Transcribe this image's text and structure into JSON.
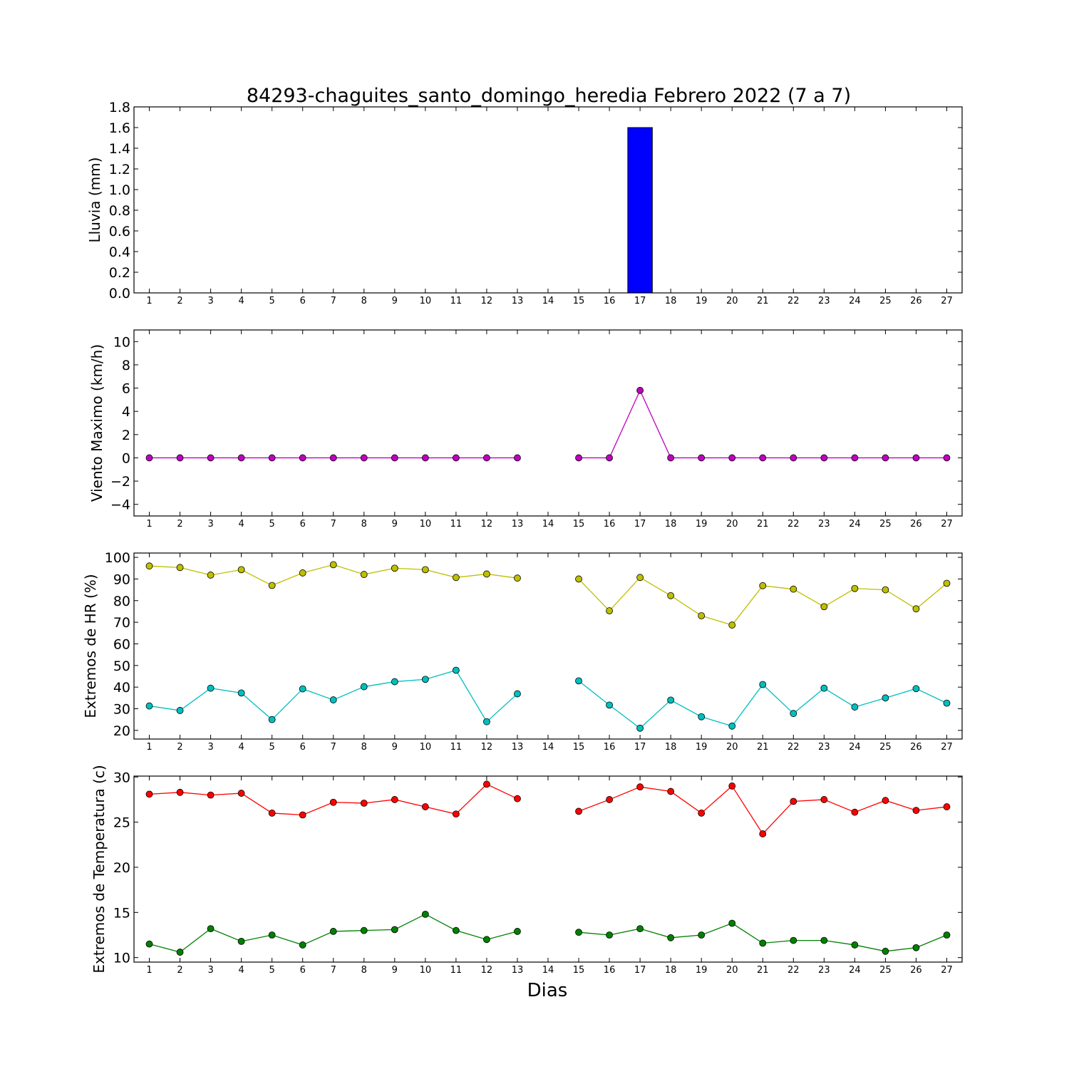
{
  "figure": {
    "title": "84293-chaguites_santo_domingo_heredia Febrero 2022  (7 a 7)",
    "xlabel": "Dias"
  },
  "chart_data": [
    {
      "type": "bar",
      "ylabel": "Lluvia (mm)",
      "x": [
        1,
        2,
        3,
        4,
        5,
        6,
        7,
        8,
        9,
        10,
        11,
        12,
        13,
        14,
        15,
        16,
        17,
        18,
        19,
        20,
        21,
        22,
        23,
        24,
        25,
        26,
        27
      ],
      "xlim": [
        0.5,
        27.5
      ],
      "ylim": [
        0,
        1.8
      ],
      "yticks": [
        0.0,
        0.2,
        0.4,
        0.6,
        0.8,
        1.0,
        1.2,
        1.4,
        1.6,
        1.8
      ],
      "ytick_labels": [
        "0.0",
        "0.2",
        "0.4",
        "0.6",
        "0.8",
        "1.0",
        "1.2",
        "1.4",
        "1.6",
        "1.8"
      ],
      "series": [
        {
          "color": "#0000ff",
          "values": [
            0,
            0,
            0,
            0,
            0,
            0,
            0,
            0,
            0,
            0,
            0,
            0,
            0,
            null,
            0,
            0,
            1.6,
            0,
            0,
            0,
            0,
            0,
            0,
            0,
            0,
            0,
            0
          ]
        }
      ]
    },
    {
      "type": "line",
      "ylabel": "Viento Maximo (km/h)",
      "x": [
        1,
        2,
        3,
        4,
        5,
        6,
        7,
        8,
        9,
        10,
        11,
        12,
        13,
        14,
        15,
        16,
        17,
        18,
        19,
        20,
        21,
        22,
        23,
        24,
        25,
        26,
        27
      ],
      "xlim": [
        0.5,
        27.5
      ],
      "ylim": [
        -5,
        11
      ],
      "yticks": [
        -4,
        -2,
        0,
        2,
        4,
        6,
        8,
        10
      ],
      "ytick_labels": [
        "−4",
        "−2",
        "0",
        "2",
        "4",
        "6",
        "8",
        "10"
      ],
      "series": [
        {
          "color": "#bf00bf",
          "values": [
            0,
            0,
            0,
            0,
            0,
            0,
            0,
            0,
            0,
            0,
            0,
            0,
            0,
            null,
            0,
            0,
            5.8,
            0,
            0,
            0,
            0,
            0,
            0,
            0,
            0,
            0,
            0
          ]
        }
      ]
    },
    {
      "type": "line",
      "ylabel": "Extremos de HR (%)",
      "x": [
        1,
        2,
        3,
        4,
        5,
        6,
        7,
        8,
        9,
        10,
        11,
        12,
        13,
        14,
        15,
        16,
        17,
        18,
        19,
        20,
        21,
        22,
        23,
        24,
        25,
        26,
        27
      ],
      "xlim": [
        0.5,
        27.5
      ],
      "ylim": [
        16,
        102
      ],
      "yticks": [
        20,
        30,
        40,
        50,
        60,
        70,
        80,
        90,
        100
      ],
      "ytick_labels": [
        "20",
        "30",
        "40",
        "50",
        "60",
        "70",
        "80",
        "90",
        "100"
      ],
      "series": [
        {
          "color": "#bfbf00",
          "values": [
            96,
            95.3,
            91.8,
            94.3,
            87,
            92.8,
            96.6,
            92.1,
            95,
            94.3,
            90.7,
            92.3,
            90.4,
            null,
            90,
            75.3,
            90.7,
            82.3,
            73,
            68.7,
            86.9,
            85.3,
            77.2,
            85.6,
            85,
            76.2,
            88
          ]
        },
        {
          "color": "#00bfbf",
          "values": [
            31.3,
            29.2,
            39.5,
            37.3,
            25,
            39.2,
            34.1,
            40.2,
            42.5,
            43.6,
            47.8,
            24,
            36.9,
            null,
            42.9,
            31.7,
            21,
            34,
            26.3,
            22,
            41.2,
            27.8,
            39.5,
            30.8,
            35,
            39.3,
            32.6
          ]
        }
      ]
    },
    {
      "type": "line",
      "ylabel": "Extremos de Temperatura (c)",
      "x": [
        1,
        2,
        3,
        4,
        5,
        6,
        7,
        8,
        9,
        10,
        11,
        12,
        13,
        14,
        15,
        16,
        17,
        18,
        19,
        20,
        21,
        22,
        23,
        24,
        25,
        26,
        27
      ],
      "xlim": [
        0.5,
        27.5
      ],
      "ylim": [
        9.5,
        30.1
      ],
      "yticks": [
        10,
        15,
        20,
        25,
        30
      ],
      "ytick_labels": [
        "10",
        "15",
        "20",
        "25",
        "30"
      ],
      "series": [
        {
          "color": "#ff0000",
          "values": [
            28.1,
            28.3,
            28,
            28.2,
            26,
            25.8,
            27.2,
            27.1,
            27.5,
            26.7,
            25.9,
            29.2,
            27.6,
            null,
            26.2,
            27.5,
            28.9,
            28.4,
            26,
            29,
            23.7,
            27.3,
            27.5,
            26.1,
            27.4,
            26.3,
            26.7
          ]
        },
        {
          "color": "#008000",
          "values": [
            11.5,
            10.6,
            13.2,
            11.8,
            12.5,
            11.4,
            12.9,
            13,
            13.1,
            14.8,
            13,
            12,
            12.9,
            null,
            12.8,
            12.5,
            13.2,
            12.2,
            12.5,
            13.8,
            11.6,
            11.9,
            11.9,
            11.4,
            10.7,
            11.1,
            12.5
          ]
        }
      ]
    }
  ]
}
